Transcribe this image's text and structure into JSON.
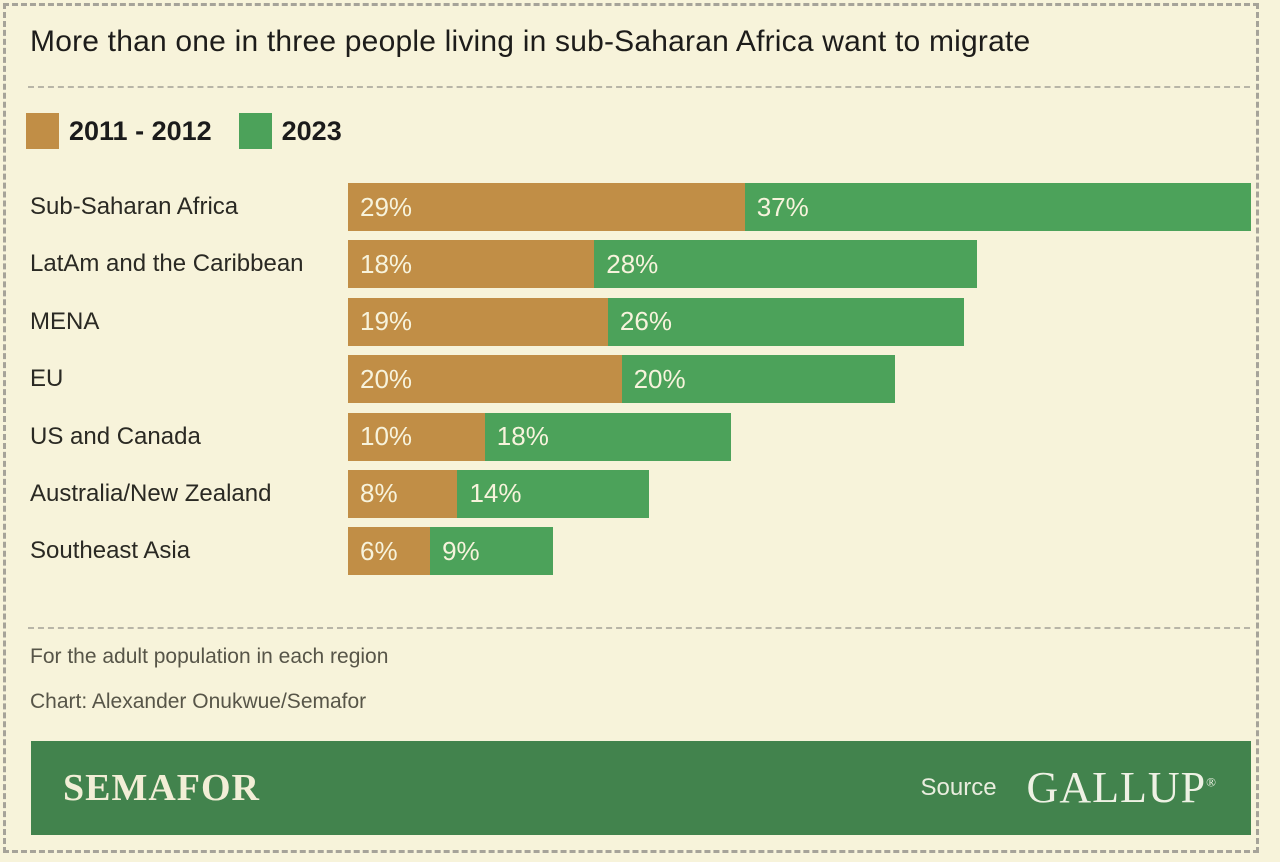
{
  "title": "More than one in three people living in sub-Saharan Africa want to migrate",
  "legend": [
    {
      "label": "2011 - 2012",
      "color": "#c18e46"
    },
    {
      "label": "2023",
      "color": "#4ca25a"
    }
  ],
  "chart_data": {
    "type": "bar",
    "variant": "horizontal-stacked",
    "title": "More than one in three people living in sub-Saharan Africa want to migrate",
    "categories": [
      "Sub-Saharan Africa",
      "LatAm and the Caribbean",
      "MENA",
      "EU",
      "US and Canada",
      "Australia/New Zealand",
      "Southeast Asia"
    ],
    "series": [
      {
        "name": "2011 - 2012",
        "color": "#c18e46",
        "values": [
          29,
          18,
          19,
          20,
          10,
          8,
          6
        ]
      },
      {
        "name": "2023",
        "color": "#4ca25a",
        "values": [
          37,
          28,
          26,
          20,
          18,
          14,
          9
        ]
      }
    ],
    "value_suffix": "%",
    "xlim": [
      0,
      66
    ],
    "grid": false,
    "legend_position": "top-left",
    "value_labels": "inside-segment-left"
  },
  "footnotes": [
    "For the adult population in each region",
    "Chart: Alexander Onukwue/Semafor"
  ],
  "footer": {
    "brand": "SEMAFOR",
    "source_label": "Source",
    "source_name": "GALLUP",
    "registered_mark": "®",
    "bar_color": "#42834d"
  },
  "colors": {
    "background": "#f7f3da",
    "frame_dash": "#a6a399",
    "divider_dash": "#b8b5a7",
    "title_text": "#1d1c1a",
    "category_text": "#2a2923",
    "bar_value_text": "#f7f3dc",
    "footnote_text": "#575548",
    "series_2011_2012": "#c18e46",
    "series_2023": "#4ca25a",
    "footer_bar": "#42834d",
    "brand_text": "#f2eed6"
  }
}
